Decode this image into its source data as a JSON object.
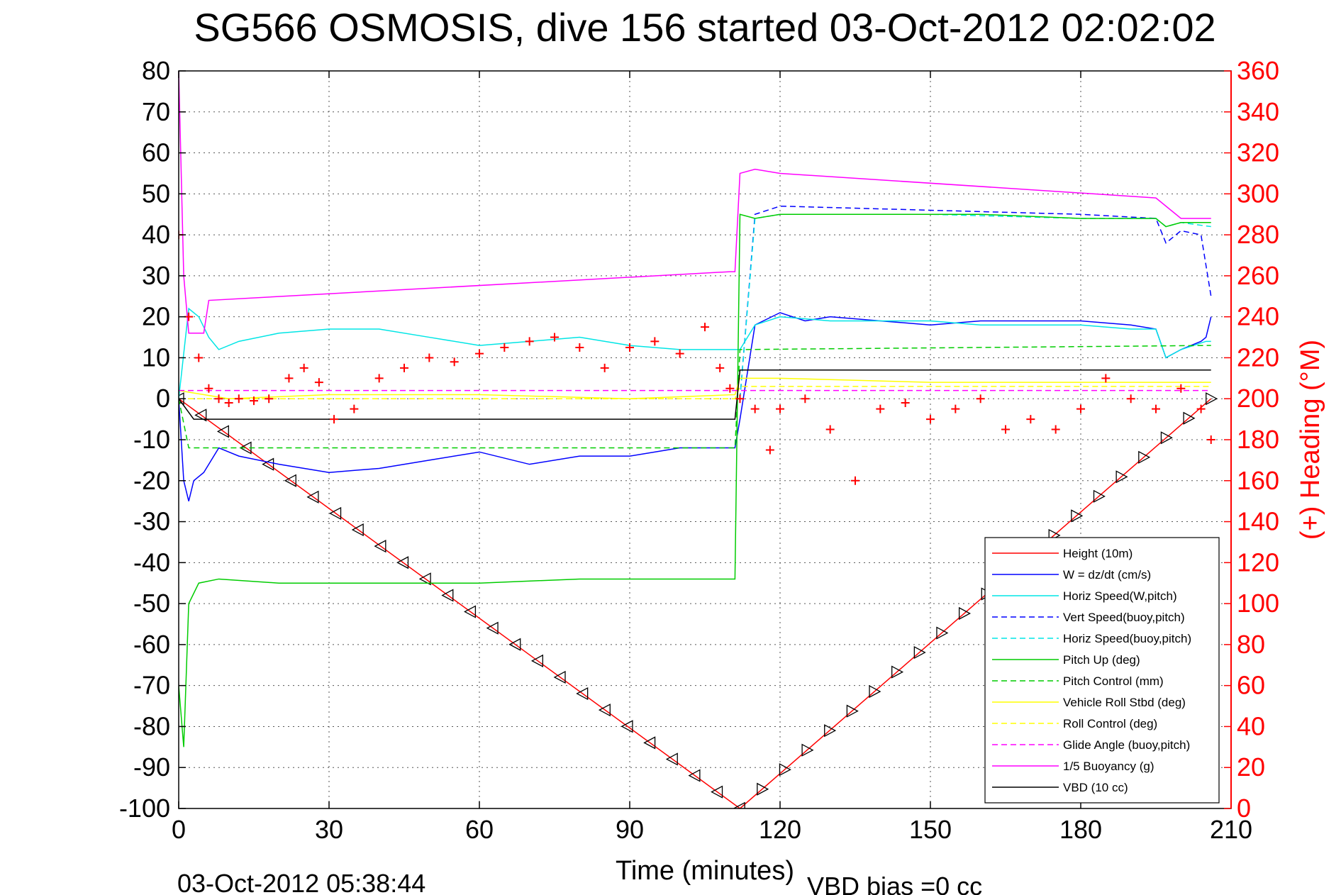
{
  "chart_data": {
    "type": "line",
    "title": "SG566 OSMOSIS, dive 156 started 03-Oct-2012 02:02:02",
    "xlabel": "Time (minutes)",
    "ylabel_right": "(+) Heading (°M)",
    "xlim": [
      0,
      210
    ],
    "ylim": [
      -100,
      80
    ],
    "ylim_right": [
      0,
      360
    ],
    "x_ticks": [
      "0",
      "30",
      "60",
      "90",
      "120",
      "150",
      "180",
      "210"
    ],
    "y_ticks": [
      "80",
      "70",
      "60",
      "50",
      "40",
      "30",
      "20",
      "10",
      "0",
      "-10",
      "-20",
      "-30",
      "-40",
      "-50",
      "-60",
      "-70",
      "-80",
      "-90",
      "-100"
    ],
    "y_ticks_right": [
      "360",
      "340",
      "320",
      "300",
      "280",
      "260",
      "240",
      "220",
      "200",
      "180",
      "160",
      "140",
      "120",
      "100",
      "80",
      "60",
      "40",
      "20",
      "0"
    ],
    "grid": true,
    "legend_position": "lower-right",
    "footer_left": "03-Oct-2012 05:38:44",
    "footer_right": "VBD bias =0 cc",
    "series": [
      {
        "name": "Height (10m)",
        "color": "#ff0000",
        "style": "solid",
        "marker": "triangle",
        "x": [
          0,
          112,
          206
        ],
        "y": [
          0,
          -100,
          0
        ]
      },
      {
        "name": "W = dz/dt (cm/s)",
        "color": "#0000ff",
        "style": "solid",
        "x": [
          0,
          1,
          2,
          3,
          5,
          8,
          12,
          20,
          30,
          40,
          50,
          60,
          70,
          80,
          90,
          100,
          110,
          111,
          112,
          115,
          120,
          125,
          130,
          140,
          150,
          160,
          170,
          180,
          190,
          195,
          197,
          200,
          204,
          205,
          206
        ],
        "y": [
          0,
          -20,
          -25,
          -20,
          -18,
          -12,
          -14,
          -16,
          -18,
          -17,
          -15,
          -13,
          -16,
          -14,
          -14,
          -12,
          -12,
          -12,
          -5,
          18,
          21,
          19,
          20,
          19,
          18,
          19,
          19,
          19,
          18,
          17,
          10,
          12,
          14,
          15,
          20
        ]
      },
      {
        "name": "Horiz Speed(W,pitch)",
        "color": "#00e5e5",
        "style": "solid",
        "x": [
          0,
          2,
          4,
          6,
          8,
          12,
          20,
          30,
          40,
          50,
          60,
          70,
          80,
          90,
          100,
          110,
          111,
          112,
          115,
          120,
          130,
          140,
          150,
          160,
          170,
          180,
          190,
          195,
          197,
          200,
          205,
          206
        ],
        "y": [
          0,
          22,
          20,
          15,
          12,
          14,
          16,
          17,
          17,
          15,
          13,
          14,
          15,
          13,
          12,
          12,
          12,
          12,
          18,
          20,
          19,
          19,
          19,
          18,
          18,
          18,
          17,
          17,
          10,
          12,
          14,
          14
        ]
      },
      {
        "name": "Vert Speed(buoy,pitch)",
        "color": "#0000ff",
        "style": "dashed",
        "x": [
          112,
          115,
          120,
          150,
          180,
          195,
          197,
          200,
          204,
          206
        ],
        "y": [
          0,
          45,
          47,
          46,
          45,
          44,
          38,
          41,
          40,
          25
        ]
      },
      {
        "name": "Horiz Speed(buoy,pitch)",
        "color": "#00e5e5",
        "style": "dashed",
        "x": [
          112,
          115,
          120,
          150,
          180,
          195,
          197,
          200,
          206
        ],
        "y": [
          0,
          44,
          45,
          45,
          44,
          44,
          42,
          43,
          42
        ]
      },
      {
        "name": "Pitch Up (deg)",
        "color": "#00cc00",
        "style": "solid",
        "x": [
          0,
          1,
          2,
          4,
          8,
          20,
          40,
          60,
          80,
          100,
          110,
          111,
          112,
          115,
          120,
          140,
          160,
          180,
          195,
          197,
          200,
          206
        ],
        "y": [
          -70,
          -85,
          -50,
          -45,
          -44,
          -45,
          -45,
          -45,
          -44,
          -44,
          -44,
          -44,
          45,
          44,
          45,
          45,
          45,
          44,
          44,
          42,
          43,
          43
        ]
      },
      {
        "name": "Pitch Control (mm)",
        "color": "#00cc00",
        "style": "dashed",
        "x": [
          0,
          2,
          111,
          112,
          206
        ],
        "y": [
          0,
          -12,
          -12,
          12,
          13
        ]
      },
      {
        "name": "Vehicle Roll Stbd (deg)",
        "color": "#ffff00",
        "style": "solid",
        "x": [
          0,
          10,
          30,
          60,
          90,
          111,
          112,
          120,
          150,
          180,
          205,
          206
        ],
        "y": [
          2,
          0,
          1,
          1,
          0,
          1,
          5,
          5,
          4,
          4,
          4,
          4
        ]
      },
      {
        "name": "Roll Control (deg)",
        "color": "#ffff00",
        "style": "dashed",
        "x": [
          0,
          111,
          112,
          206
        ],
        "y": [
          0,
          0,
          3,
          3
        ]
      },
      {
        "name": "Glide Angle (buoy,pitch)",
        "color": "#ff00ff",
        "style": "dashed",
        "x": [
          0,
          206
        ],
        "y": [
          2,
          2
        ]
      },
      {
        "name": "1/5 Buoyancy (g)",
        "color": "#ff00ff",
        "style": "solid",
        "x": [
          0,
          1,
          2,
          5,
          6,
          110,
          111,
          112,
          115,
          120,
          195,
          196,
          200,
          206
        ],
        "y": [
          80,
          30,
          16,
          16,
          24,
          31,
          31,
          55,
          56,
          55,
          49,
          48,
          44,
          44
        ]
      },
      {
        "name": "VBD (10 cc)",
        "color": "#000000",
        "style": "solid",
        "x": [
          0,
          3,
          111,
          112,
          206
        ],
        "y": [
          0,
          -5,
          -5,
          7,
          7
        ]
      },
      {
        "name": "Heading",
        "color": "#ff0000",
        "style": "marker-plus",
        "axis": "right",
        "x": [
          0,
          2,
          4,
          6,
          8,
          10,
          12,
          15,
          18,
          22,
          25,
          28,
          31,
          35,
          40,
          45,
          50,
          55,
          60,
          65,
          70,
          75,
          80,
          85,
          90,
          95,
          100,
          105,
          108,
          110,
          112,
          115,
          118,
          120,
          125,
          130,
          135,
          140,
          145,
          150,
          155,
          160,
          165,
          170,
          175,
          180,
          185,
          190,
          195,
          200,
          204,
          206
        ],
        "y": [
          280,
          240,
          220,
          205,
          200,
          198,
          200,
          199,
          200,
          210,
          215,
          208,
          190,
          195,
          210,
          215,
          220,
          218,
          222,
          225,
          228,
          230,
          225,
          215,
          225,
          228,
          222,
          235,
          215,
          205,
          200,
          195,
          175,
          195,
          200,
          185,
          160,
          195,
          198,
          190,
          195,
          200,
          185,
          190,
          185,
          195,
          210,
          200,
          195,
          205,
          195,
          180
        ]
      }
    ]
  }
}
